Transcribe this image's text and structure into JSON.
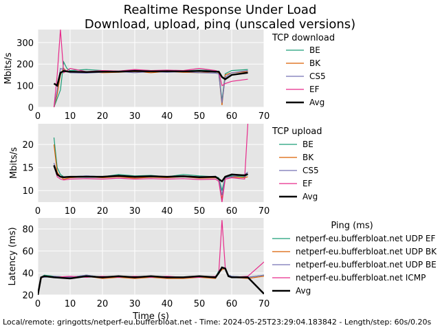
{
  "title": "Realtime Response Under Load",
  "subtitle": "Download, upload, ping (unscaled versions)",
  "footer": "Local/remote: gringotts/netperf-eu.bufferbloat.net - Time: 2024-05-25T23:29:04.183842 - Length/step: 60s/0.20s",
  "colors": {
    "panel_bg": "#e5e5e5",
    "grid": "#ffffff",
    "series": [
      "#1b9e77",
      "#d95f02",
      "#7570b3",
      "#e7298a",
      "#000000"
    ]
  },
  "chart_data": [
    {
      "type": "line",
      "ylabel": "Mbits/s",
      "xlim": [
        0,
        70
      ],
      "ylim": [
        0,
        360
      ],
      "xticks": [
        0,
        10,
        20,
        30,
        40,
        50,
        60,
        70
      ],
      "yticks": [
        0,
        100,
        200,
        300
      ],
      "grid": true,
      "legend_title": "TCP download",
      "legend_position": "right",
      "series": [
        {
          "name": "BE",
          "x": [
            5,
            6,
            7,
            8,
            9,
            10,
            15,
            20,
            25,
            30,
            35,
            40,
            45,
            50,
            55,
            56,
            57,
            58,
            60,
            65
          ],
          "y": [
            0,
            40,
            80,
            210,
            180,
            170,
            175,
            170,
            168,
            172,
            170,
            170,
            168,
            172,
            170,
            165,
            30,
            155,
            170,
            175
          ]
        },
        {
          "name": "BK",
          "x": [
            5,
            6,
            7,
            8,
            9,
            10,
            15,
            20,
            25,
            30,
            35,
            40,
            45,
            50,
            55,
            56,
            57,
            58,
            60,
            65
          ],
          "y": [
            0,
            60,
            150,
            180,
            165,
            160,
            165,
            160,
            162,
            165,
            160,
            165,
            162,
            160,
            165,
            160,
            10,
            150,
            160,
            165
          ]
        },
        {
          "name": "CS5",
          "x": [
            5,
            6,
            7,
            8,
            9,
            10,
            15,
            20,
            25,
            30,
            35,
            40,
            45,
            50,
            55,
            56,
            57,
            58,
            60,
            65
          ],
          "y": [
            0,
            80,
            180,
            175,
            165,
            160,
            158,
            162,
            165,
            160,
            165,
            162,
            165,
            160,
            158,
            155,
            20,
            140,
            160,
            170
          ]
        },
        {
          "name": "EF",
          "x": [
            5,
            6,
            7,
            8,
            9,
            10,
            15,
            20,
            25,
            30,
            35,
            40,
            45,
            50,
            55,
            56,
            57,
            58,
            60,
            65
          ],
          "y": [
            0,
            150,
            360,
            160,
            170,
            180,
            165,
            170,
            168,
            175,
            170,
            172,
            170,
            180,
            170,
            165,
            100,
            110,
            120,
            130
          ]
        },
        {
          "name": "Avg",
          "x": [
            5,
            6,
            7,
            8,
            9,
            10,
            15,
            20,
            25,
            30,
            35,
            40,
            45,
            50,
            55,
            56,
            57,
            58,
            60,
            65
          ],
          "y": [
            110,
            100,
            160,
            168,
            166,
            165,
            163,
            165,
            165,
            168,
            166,
            167,
            166,
            168,
            165,
            165,
            140,
            130,
            150,
            160
          ]
        }
      ]
    },
    {
      "type": "line",
      "ylabel": "Mbits/s",
      "xlim": [
        0,
        70
      ],
      "ylim": [
        7.5,
        24.5
      ],
      "xticks": [
        0,
        10,
        20,
        30,
        40,
        50,
        60,
        70
      ],
      "yticks": [
        10,
        15,
        20
      ],
      "grid": true,
      "legend_title": "TCP upload",
      "legend_position": "right",
      "series": [
        {
          "name": "BE",
          "x": [
            5,
            6,
            7,
            8,
            10,
            15,
            20,
            25,
            30,
            35,
            40,
            45,
            50,
            55,
            56,
            57,
            58,
            60,
            64,
            65
          ],
          "y": [
            21.5,
            15,
            13.5,
            13,
            13,
            13.2,
            13,
            13.5,
            13.2,
            13.3,
            13,
            13.5,
            13.2,
            13,
            12.8,
            10,
            13,
            13.2,
            13,
            13.5
          ]
        },
        {
          "name": "BK",
          "x": [
            5,
            6,
            7,
            8,
            10,
            15,
            20,
            25,
            30,
            35,
            40,
            45,
            50,
            55,
            56,
            57,
            58,
            60,
            64,
            65
          ],
          "y": [
            20,
            14,
            13,
            12.5,
            12.8,
            13,
            12.8,
            13,
            12.7,
            12.9,
            12.8,
            13,
            12.7,
            12.8,
            12.5,
            8,
            12.8,
            13,
            12.8,
            13
          ]
        },
        {
          "name": "CS5",
          "x": [
            5,
            6,
            7,
            8,
            10,
            15,
            20,
            25,
            30,
            35,
            40,
            45,
            50,
            55,
            56,
            57,
            58,
            60,
            64,
            65
          ],
          "y": [
            16,
            13.5,
            13,
            12.8,
            13,
            13.2,
            13,
            13.2,
            13,
            13.1,
            13,
            13.2,
            13,
            13.1,
            12.5,
            9,
            12.8,
            13,
            13.5,
            14
          ]
        },
        {
          "name": "EF",
          "x": [
            5,
            6,
            7,
            8,
            10,
            15,
            20,
            25,
            30,
            35,
            40,
            45,
            50,
            55,
            56,
            57,
            58,
            60,
            64,
            65
          ],
          "y": [
            15.5,
            13,
            12.5,
            12.3,
            12.5,
            12.6,
            12.5,
            12.7,
            12.5,
            12.6,
            12.5,
            12.6,
            12.4,
            12.5,
            12,
            7.5,
            12.5,
            12.8,
            12.5,
            24.5
          ]
        },
        {
          "name": "Avg",
          "x": [
            5,
            6,
            7,
            8,
            10,
            15,
            20,
            25,
            30,
            35,
            40,
            45,
            50,
            55,
            56,
            57,
            58,
            60,
            64,
            65
          ],
          "y": [
            15.5,
            13.5,
            13,
            12.9,
            13,
            13,
            13,
            13.2,
            13,
            13.1,
            13,
            13.1,
            12.9,
            13,
            12.5,
            12,
            13,
            13.5,
            13.3,
            13.6
          ]
        }
      ]
    },
    {
      "type": "line",
      "ylabel": "Latency (ms)",
      "xlabel": "Time (s)",
      "xlim": [
        0,
        70
      ],
      "ylim": [
        20,
        90
      ],
      "xticks": [
        0,
        10,
        20,
        30,
        40,
        50,
        60,
        70
      ],
      "yticks": [
        20,
        40,
        60,
        80
      ],
      "grid": true,
      "legend_title": "Ping (ms)",
      "legend_position": "right",
      "series": [
        {
          "name": "netperf-eu.bufferbloat.net UDP EF",
          "x": [
            0,
            1,
            2,
            5,
            10,
            15,
            20,
            25,
            30,
            35,
            40,
            45,
            50,
            55,
            56,
            57,
            58,
            59,
            60,
            65,
            70
          ],
          "y": [
            20,
            36,
            38,
            37,
            36,
            38,
            36,
            37,
            36,
            37,
            36,
            36,
            37,
            36,
            42,
            44,
            45,
            38,
            37,
            36,
            38
          ]
        },
        {
          "name": "netperf-eu.bufferbloat.net UDP BK",
          "x": [
            0,
            1,
            2,
            5,
            10,
            15,
            20,
            25,
            30,
            35,
            40,
            45,
            50,
            55,
            56,
            57,
            58,
            59,
            60,
            65,
            70
          ],
          "y": [
            20,
            35,
            37,
            36,
            35,
            37,
            35,
            36,
            35,
            36,
            35,
            35,
            36,
            35,
            40,
            43,
            44,
            37,
            36,
            35,
            37
          ]
        },
        {
          "name": "netperf-eu.bufferbloat.net UDP BE",
          "x": [
            0,
            1,
            2,
            5,
            10,
            15,
            20,
            25,
            30,
            35,
            40,
            45,
            50,
            55,
            56,
            57,
            58,
            59,
            60,
            65,
            70
          ],
          "y": [
            20,
            36,
            36,
            37,
            36,
            38,
            36,
            37,
            36,
            37,
            36,
            36,
            37,
            36,
            41,
            44,
            45,
            38,
            37,
            36,
            38
          ]
        },
        {
          "name": "netperf-eu.bufferbloat.net ICMP",
          "x": [
            0,
            1,
            2,
            5,
            10,
            15,
            20,
            25,
            30,
            35,
            40,
            45,
            50,
            55,
            56,
            57,
            58,
            59,
            60,
            65,
            70
          ],
          "y": [
            20,
            36,
            37,
            36,
            37,
            36,
            37,
            36,
            37,
            36,
            37,
            36,
            36,
            37,
            40,
            88,
            45,
            37,
            36,
            37,
            50
          ]
        },
        {
          "name": "Avg",
          "x": [
            0,
            1,
            2,
            5,
            10,
            15,
            20,
            25,
            30,
            35,
            40,
            45,
            50,
            55,
            56,
            57,
            58,
            59,
            60,
            65,
            70
          ],
          "y": [
            20,
            36,
            37,
            36,
            35,
            37,
            36,
            37,
            36,
            37,
            36,
            36,
            37,
            36,
            40,
            45,
            44,
            37,
            36,
            36,
            21
          ]
        }
      ]
    }
  ]
}
